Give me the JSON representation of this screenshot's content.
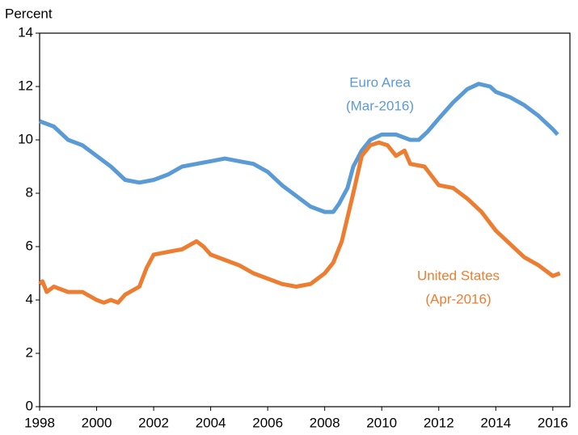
{
  "chart_data": {
    "type": "line",
    "y_axis_label": "Percent",
    "xlim": [
      1998,
      2016.6
    ],
    "xticks": [
      1998,
      2000,
      2002,
      2004,
      2006,
      2008,
      2010,
      2012,
      2014,
      2016
    ],
    "ylim": [
      0,
      14
    ],
    "yticks": [
      0,
      2,
      4,
      6,
      8,
      10,
      12,
      14
    ],
    "grid": false,
    "series": [
      {
        "name": "Euro Area",
        "date_label": "(Mar-2016)",
        "color": "#5b9bd5",
        "x": [
          1998.0,
          1998.5,
          1999.0,
          1999.5,
          2000.0,
          2000.5,
          2001.0,
          2001.5,
          2002.0,
          2002.5,
          2003.0,
          2003.5,
          2004.0,
          2004.5,
          2005.0,
          2005.5,
          2006.0,
          2006.5,
          2007.0,
          2007.5,
          2008.0,
          2008.3,
          2008.5,
          2008.8,
          2009.0,
          2009.3,
          2009.6,
          2010.0,
          2010.5,
          2011.0,
          2011.3,
          2011.6,
          2012.0,
          2012.5,
          2013.0,
          2013.4,
          2013.8,
          2014.0,
          2014.5,
          2015.0,
          2015.5,
          2016.0,
          2016.17
        ],
        "values": [
          10.7,
          10.5,
          10.0,
          9.8,
          9.4,
          9.0,
          8.5,
          8.4,
          8.5,
          8.7,
          9.0,
          9.1,
          9.2,
          9.3,
          9.2,
          9.1,
          8.8,
          8.3,
          7.9,
          7.5,
          7.3,
          7.3,
          7.6,
          8.2,
          9.0,
          9.6,
          10.0,
          10.2,
          10.2,
          10.0,
          10.0,
          10.3,
          10.8,
          11.4,
          11.9,
          12.1,
          12.0,
          11.8,
          11.6,
          11.3,
          10.9,
          10.4,
          10.2
        ]
      },
      {
        "name": "United States",
        "date_label": "(Apr-2016)",
        "color": "#ed7d31",
        "x": [
          1998.0,
          1998.1,
          1998.25,
          1998.5,
          1999.0,
          1999.5,
          2000.0,
          2000.25,
          2000.5,
          2000.75,
          2001.0,
          2001.5,
          2001.75,
          2002.0,
          2002.5,
          2003.0,
          2003.5,
          2003.75,
          2004.0,
          2004.5,
          2005.0,
          2005.5,
          2006.0,
          2006.5,
          2007.0,
          2007.5,
          2008.0,
          2008.3,
          2008.6,
          2009.0,
          2009.3,
          2009.6,
          2009.9,
          2010.2,
          2010.5,
          2010.8,
          2011.0,
          2011.5,
          2012.0,
          2012.5,
          2013.0,
          2013.5,
          2014.0,
          2014.5,
          2015.0,
          2015.5,
          2016.0,
          2016.25
        ],
        "values": [
          4.6,
          4.7,
          4.3,
          4.5,
          4.3,
          4.3,
          4.0,
          3.9,
          4.0,
          3.9,
          4.2,
          4.5,
          5.2,
          5.7,
          5.8,
          5.9,
          6.2,
          6.0,
          5.7,
          5.5,
          5.3,
          5.0,
          4.8,
          4.6,
          4.5,
          4.6,
          5.0,
          5.4,
          6.2,
          8.0,
          9.4,
          9.8,
          9.9,
          9.8,
          9.4,
          9.6,
          9.1,
          9.0,
          8.3,
          8.2,
          7.8,
          7.3,
          6.6,
          6.1,
          5.6,
          5.3,
          4.9,
          5.0
        ]
      }
    ]
  }
}
